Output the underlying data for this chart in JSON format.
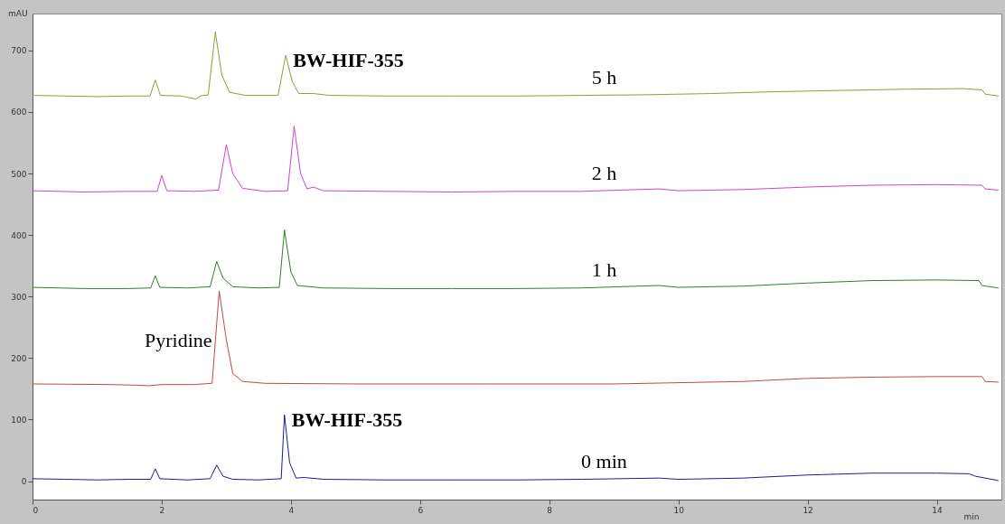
{
  "chart_data": {
    "type": "line",
    "ylabel": "mAU",
    "xlabel": "min",
    "xlim": [
      0,
      15
    ],
    "xticks": [
      0,
      2,
      4,
      6,
      8,
      10,
      12,
      14
    ],
    "ylim": [
      -30,
      760
    ],
    "yticks": [
      0,
      100,
      200,
      300,
      400,
      500,
      600,
      700
    ],
    "grid": false,
    "legend": false,
    "marker": "none",
    "line_style": "solid",
    "series": [
      {
        "name": "5 h",
        "color": "#99993a",
        "x": [
          0,
          0.5,
          1.0,
          1.5,
          1.82,
          1.9,
          1.98,
          2.3,
          2.53,
          2.6,
          2.72,
          2.83,
          2.93,
          3.05,
          3.3,
          3.8,
          3.92,
          4.02,
          4.12,
          4.35,
          4.6,
          5.5,
          6.5,
          7.5,
          8.5,
          9.5,
          10.5,
          11.5,
          12.5,
          13.5,
          14.4,
          14.7,
          14.75,
          14.95
        ],
        "values": [
          627,
          626,
          625,
          626,
          626,
          652,
          627,
          626,
          621,
          626,
          628,
          730,
          660,
          632,
          627,
          627,
          692,
          650,
          630,
          630,
          627,
          626,
          626,
          626,
          627,
          628,
          630,
          633,
          635,
          637,
          638,
          636,
          629,
          626
        ]
      },
      {
        "name": "2 h",
        "color": "#cc44cc",
        "x": [
          0,
          0.8,
          1.5,
          1.93,
          2.0,
          2.08,
          2.5,
          2.88,
          3.0,
          3.1,
          3.25,
          3.6,
          3.95,
          4.05,
          4.15,
          4.25,
          4.35,
          4.5,
          5.5,
          6.5,
          7.5,
          8.5,
          9.7,
          10,
          11,
          12,
          13,
          14,
          14.7,
          14.75,
          14.95
        ],
        "values": [
          472,
          470,
          471,
          471,
          497,
          472,
          471,
          473,
          547,
          500,
          476,
          471,
          472,
          577,
          500,
          475,
          478,
          472,
          471,
          470,
          471,
          471,
          475,
          472,
          474,
          478,
          481,
          482,
          481,
          475,
          473
        ]
      },
      {
        "name": "1 h",
        "color": "#2e7d32",
        "x": [
          0,
          0.8,
          1.5,
          1.83,
          1.9,
          1.97,
          2.4,
          2.75,
          2.85,
          2.95,
          3.1,
          3.5,
          3.82,
          3.9,
          4.0,
          4.1,
          4.5,
          5.5,
          6.5,
          7.5,
          8.5,
          9.7,
          10,
          11,
          12,
          13,
          14,
          14.65,
          14.7,
          14.95
        ],
        "values": [
          315,
          313,
          313,
          314,
          334,
          315,
          314,
          316,
          357,
          330,
          316,
          314,
          315,
          408,
          340,
          318,
          314,
          313,
          313,
          313,
          314,
          318,
          315,
          317,
          322,
          326,
          327,
          326,
          318,
          314
        ]
      },
      {
        "color": "#c04848",
        "x": [
          0,
          1.2,
          1.6,
          1.8,
          2.0,
          2.5,
          2.78,
          2.89,
          3.0,
          3.1,
          3.25,
          3.6,
          5,
          7,
          9,
          11,
          12,
          13,
          14,
          14.7,
          14.75,
          14.95
        ],
        "values": [
          158,
          157,
          156,
          155,
          157,
          157,
          159,
          309,
          230,
          175,
          162,
          159,
          158,
          158,
          158,
          162,
          167,
          169,
          170,
          170,
          162,
          161
        ]
      },
      {
        "name": "0 min",
        "color": "#1a1a99",
        "x": [
          0,
          0.5,
          1.0,
          1.5,
          1.83,
          1.9,
          1.97,
          2.4,
          2.75,
          2.85,
          2.95,
          3.1,
          3.5,
          3.85,
          3.9,
          3.98,
          4.08,
          4.2,
          4.5,
          5.5,
          6.5,
          7.5,
          8.5,
          9.7,
          10,
          11,
          12,
          13,
          14,
          14.5,
          14.6,
          14.95
        ],
        "values": [
          4,
          3,
          2,
          3,
          3,
          20,
          4,
          2,
          4,
          26,
          8,
          3,
          2,
          4,
          108,
          30,
          5,
          6,
          3,
          2,
          2,
          2,
          3,
          5,
          3,
          5,
          10,
          13,
          13,
          12,
          8,
          1
        ]
      }
    ],
    "annotations": [
      {
        "text": "BW-HIF-355",
        "x": 3.92,
        "y": 692
      },
      {
        "text": "Pyridine",
        "x": 2.89,
        "y": 309
      },
      {
        "text": "BW-HIF-355",
        "x": 3.9,
        "y": 108
      }
    ]
  }
}
